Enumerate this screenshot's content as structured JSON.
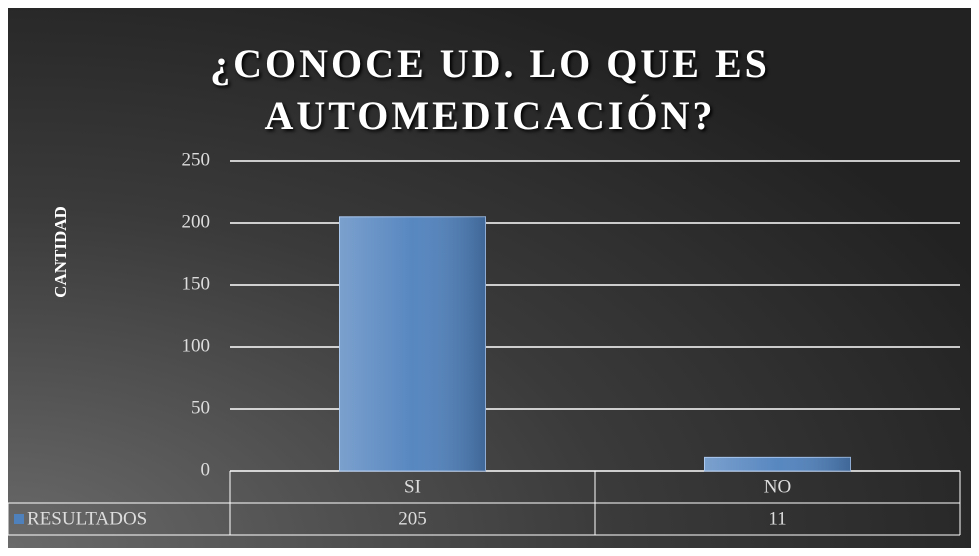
{
  "chart_data": {
    "type": "bar",
    "title": "¿CONOCE UD. LO QUE ES AUTOMEDICACIÓN?",
    "y_label": "CANTIDAD",
    "categories": [
      "SI",
      "NO"
    ],
    "series": [
      {
        "name": "RESULTADOS",
        "color": "#4f81bd",
        "values": [
          205,
          11
        ]
      }
    ],
    "ylim": [
      0,
      250
    ],
    "yticks": [
      0,
      50,
      100,
      150,
      200,
      250
    ],
    "grid": true
  }
}
